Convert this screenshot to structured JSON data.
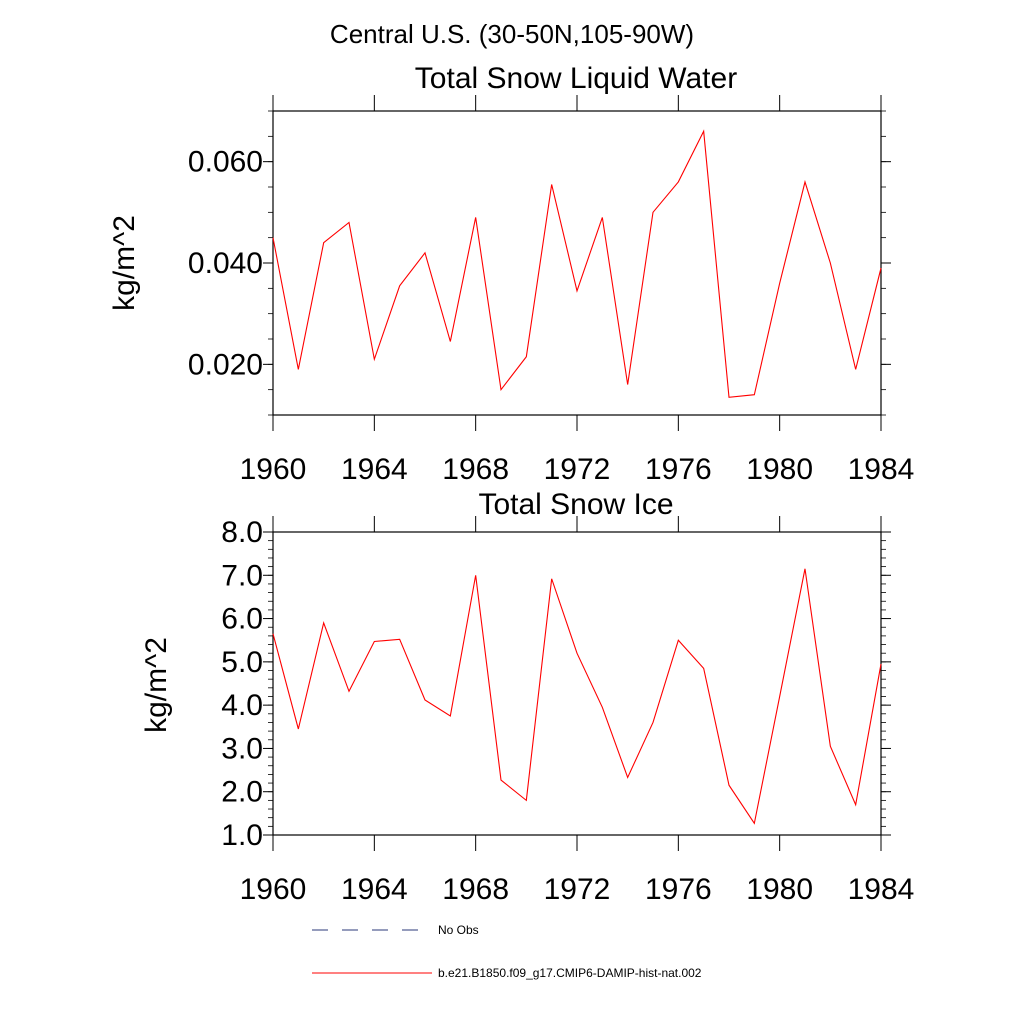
{
  "main_title": "Central U.S. (30-50N,105-90W)",
  "legend": {
    "no_obs_label": "No Obs",
    "model_label": "b.e21.B1850.f09_g17.CMIP6-DAMIP-hist-nat.002",
    "model_color": "#ff0000",
    "no_obs_color": "#2b3a7a"
  },
  "chart_data": [
    {
      "type": "line",
      "title": "Total Snow Liquid Water",
      "xlabel": "",
      "ylabel": "kg/m^2",
      "xlim": [
        1960,
        1984
      ],
      "ylim": [
        0.01,
        0.07
      ],
      "x_ticks": [
        "1960",
        "1964",
        "1968",
        "1972",
        "1976",
        "1980",
        "1984"
      ],
      "y_ticks": [
        "0.020",
        "0.040",
        "0.060"
      ],
      "grid": false,
      "x": [
        1960,
        1961,
        1962,
        1963,
        1964,
        1965,
        1966,
        1967,
        1968,
        1969,
        1970,
        1971,
        1972,
        1973,
        1974,
        1975,
        1976,
        1977,
        1978,
        1979,
        1980,
        1981,
        1982,
        1983,
        1984
      ],
      "series": [
        {
          "values": [
            0.045,
            0.019,
            0.044,
            0.048,
            0.021,
            0.0355,
            0.042,
            0.0245,
            0.049,
            0.015,
            0.0215,
            0.0555,
            0.0345,
            0.049,
            0.016,
            0.05,
            0.056,
            0.066,
            0.0135,
            0.014,
            0.036,
            0.056,
            0.04,
            0.019,
            0.039
          ],
          "color": "#ff0000"
        }
      ]
    },
    {
      "type": "line",
      "title": "Total Snow Ice",
      "xlabel": "",
      "ylabel": "kg/m^2",
      "xlim": [
        1960,
        1984
      ],
      "ylim": [
        1.0,
        8.0
      ],
      "x_ticks": [
        "1960",
        "1964",
        "1968",
        "1972",
        "1976",
        "1980",
        "1984"
      ],
      "y_ticks": [
        "1.0",
        "2.0",
        "3.0",
        "4.0",
        "5.0",
        "6.0",
        "7.0",
        "8.0"
      ],
      "grid": false,
      "x": [
        1960,
        1961,
        1962,
        1963,
        1964,
        1965,
        1966,
        1967,
        1968,
        1969,
        1970,
        1971,
        1972,
        1973,
        1974,
        1975,
        1976,
        1977,
        1978,
        1979,
        1980,
        1981,
        1982,
        1983,
        1984
      ],
      "series": [
        {
          "values": [
            5.65,
            3.45,
            5.9,
            4.32,
            5.47,
            5.52,
            4.12,
            3.75,
            7.0,
            2.27,
            1.8,
            6.92,
            5.2,
            3.95,
            2.33,
            3.6,
            5.5,
            4.85,
            2.15,
            1.27,
            4.2,
            7.15,
            3.05,
            1.7,
            4.95
          ],
          "color": "#ff0000"
        }
      ]
    }
  ]
}
